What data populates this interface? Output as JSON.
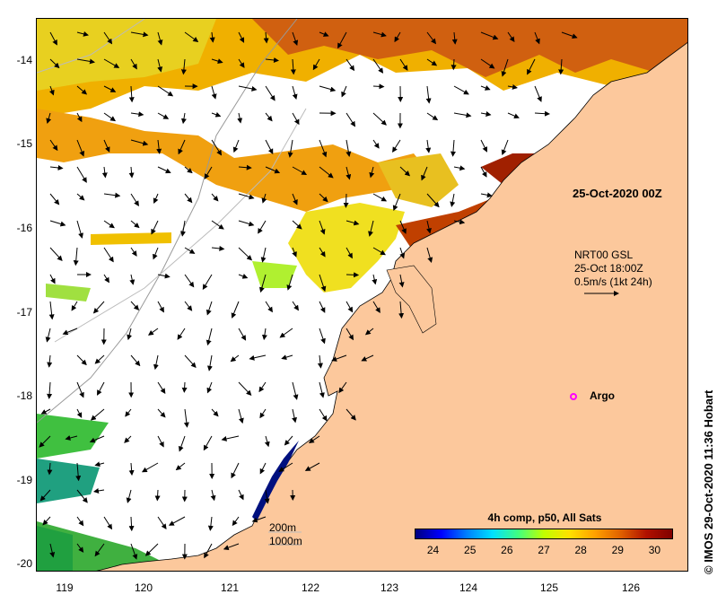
{
  "map": {
    "y_axis_labels": [
      "-14",
      "-15",
      "-16",
      "-17",
      "-18",
      "-19",
      "-20"
    ],
    "x_axis_labels": [
      "119",
      "120",
      "121",
      "122",
      "123",
      "124",
      "125",
      "126"
    ],
    "lon_range": [
      118.6,
      126.7
    ],
    "lat_range": [
      -13.5,
      -20.1
    ],
    "date_label": "25-Oct-2020 00Z",
    "current_legend": {
      "line1": "NRT00 GSL",
      "line2": "25-Oct 18:00Z",
      "line3": "0.5m/s (1kt 24h)"
    },
    "argo_label": "Argo",
    "isobaths": {
      "shallow": "200m",
      "deep": "1000m"
    },
    "colorbar": {
      "title": "4h comp, p50, All Sats",
      "ticks": [
        "24",
        "25",
        "26",
        "27",
        "28",
        "29",
        "30"
      ],
      "range": [
        23.5,
        30.5
      ]
    },
    "credit": "© IMOS 29-Oct-2020 11:36 Hobart",
    "colors": {
      "land": "#fcc89c",
      "ocean_nodata": "#ffffff",
      "argo_marker": "#ff00ff"
    }
  }
}
